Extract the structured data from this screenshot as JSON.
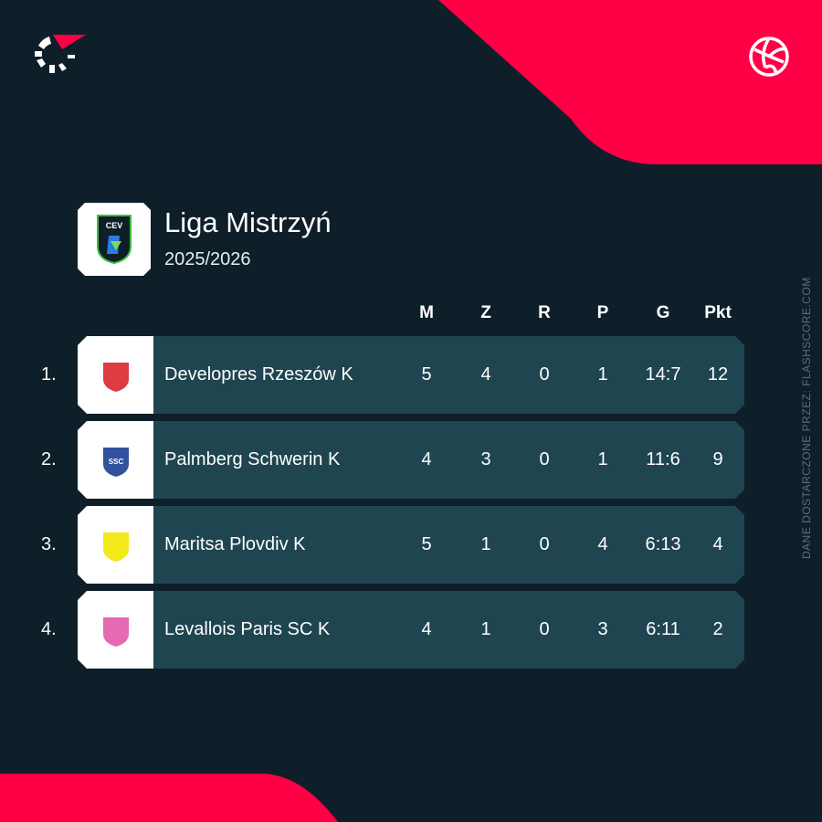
{
  "brand": {
    "logo_icon": "flashscore-logo",
    "sport_icon": "volleyball-icon",
    "accent": "#ff0046",
    "background": "#0e1f29",
    "row_color": "#1f4551"
  },
  "league": {
    "title": "Liga Mistrzyń",
    "season": "2025/2026",
    "logo_text": "CEV"
  },
  "attribution": "DANE DOSTARCZONE PRZEZ: FLASHSCORE.COM",
  "columns": [
    "M",
    "Z",
    "R",
    "P",
    "G",
    "Pkt"
  ],
  "rows": [
    {
      "rank": "1.",
      "team": "Developres Rzeszów K",
      "values": [
        "5",
        "4",
        "0",
        "1",
        "14:7",
        "12"
      ],
      "logo_color": "#d9262c"
    },
    {
      "rank": "2.",
      "team": "Palmberg Schwerin K",
      "values": [
        "4",
        "3",
        "0",
        "1",
        "11:6",
        "9"
      ],
      "logo_color": "#1c3f94",
      "logo_text": "SSC"
    },
    {
      "rank": "3.",
      "team": "Maritsa Plovdiv K",
      "values": [
        "5",
        "1",
        "0",
        "4",
        "6:13",
        "4"
      ],
      "logo_color": "#f2e500"
    },
    {
      "rank": "4.",
      "team": "Levallois Paris SC K",
      "values": [
        "4",
        "1",
        "0",
        "3",
        "6:11",
        "2"
      ],
      "logo_color": "#e25aa8"
    }
  ]
}
